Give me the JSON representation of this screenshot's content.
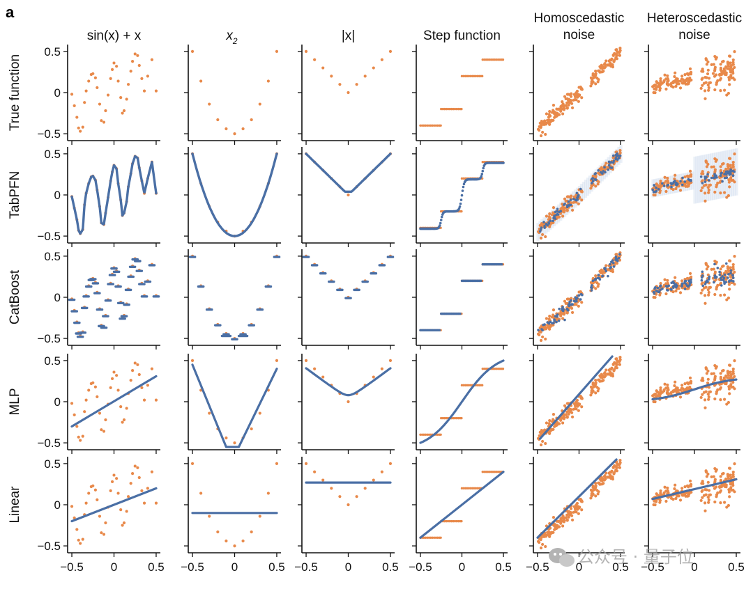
{
  "panel_letter": "a",
  "watermark": {
    "text": "公众号 · 量子位",
    "icon": "wechat-icon"
  },
  "colors": {
    "data_points": "#e8894a",
    "model": "#4a6fa5",
    "axis": "#111111"
  },
  "columns": [
    "sin(x) + x",
    "x2",
    "|x|",
    "Step function",
    "Homoscedastic noise",
    "Heteroscedastic noise"
  ],
  "column_titles": [
    {
      "lines": [
        "sin(x) + x"
      ]
    },
    {
      "lines": [
        "x",
        "2"
      ]
    },
    {
      "lines": [
        "|x|"
      ]
    },
    {
      "lines": [
        "Step function"
      ]
    },
    {
      "lines": [
        "Homoscedastic",
        "noise"
      ]
    },
    {
      "lines": [
        "Heteroscedastic",
        "noise"
      ]
    }
  ],
  "rows": [
    "True function",
    "TabPFN",
    "CatBoost",
    "MLP",
    "Linear"
  ],
  "y_ticks": [
    "0.5",
    "0",
    "−0.5"
  ],
  "x_ticks": [
    "−0.5",
    "0",
    "0.5"
  ],
  "chart_data": {
    "type": "scatter",
    "title": "",
    "xlabel": "",
    "ylabel": "",
    "xlim": [
      -0.55,
      0.55
    ],
    "ylim": [
      -0.55,
      0.55
    ],
    "grid": false,
    "series": [
      {
        "name": "True function",
        "kind": "points",
        "panels": {
          "sin(x) + x": [
            [
              -0.5,
              -0.02
            ],
            [
              -0.47,
              -0.16
            ],
            [
              -0.44,
              -0.3
            ],
            [
              -0.42,
              -0.43
            ],
            [
              -0.4,
              -0.47
            ],
            [
              -0.37,
              -0.42
            ],
            [
              -0.35,
              -0.12
            ],
            [
              -0.33,
              0.02
            ],
            [
              -0.3,
              0.14
            ],
            [
              -0.27,
              0.22
            ],
            [
              -0.25,
              0.23
            ],
            [
              -0.22,
              0.18
            ],
            [
              -0.2,
              0.06
            ],
            [
              -0.17,
              -0.14
            ],
            [
              -0.15,
              -0.34
            ],
            [
              -0.12,
              -0.36
            ],
            [
              -0.1,
              -0.22
            ],
            [
              -0.07,
              -0.03
            ],
            [
              -0.04,
              0.17
            ],
            [
              -0.02,
              0.28
            ],
            [
              0.0,
              0.36
            ],
            [
              0.03,
              0.32
            ],
            [
              0.05,
              0.14
            ],
            [
              0.08,
              -0.06
            ],
            [
              0.1,
              -0.25
            ],
            [
              0.12,
              -0.22
            ],
            [
              0.15,
              -0.08
            ],
            [
              0.17,
              0.1
            ],
            [
              0.2,
              0.26
            ],
            [
              0.22,
              0.38
            ],
            [
              0.25,
              0.47
            ],
            [
              0.28,
              0.45
            ],
            [
              0.3,
              0.33
            ],
            [
              0.33,
              0.17
            ],
            [
              0.36,
              0.02
            ],
            [
              0.4,
              0.2
            ],
            [
              0.45,
              0.4
            ],
            [
              0.5,
              0.02
            ]
          ],
          "x2": [
            [
              -0.5,
              0.5
            ],
            [
              -0.4,
              0.14
            ],
            [
              -0.3,
              -0.14
            ],
            [
              -0.2,
              -0.33
            ],
            [
              -0.1,
              -0.44
            ],
            [
              0.0,
              -0.5
            ],
            [
              0.1,
              -0.44
            ],
            [
              0.2,
              -0.33
            ],
            [
              0.3,
              -0.14
            ],
            [
              0.4,
              0.14
            ],
            [
              0.5,
              0.5
            ]
          ],
          "|x|": [
            [
              -0.5,
              0.5
            ],
            [
              -0.4,
              0.4
            ],
            [
              -0.3,
              0.3
            ],
            [
              -0.2,
              0.2
            ],
            [
              -0.1,
              0.1
            ],
            [
              0.0,
              0.0
            ],
            [
              0.1,
              0.1
            ],
            [
              0.2,
              0.2
            ],
            [
              0.3,
              0.3
            ],
            [
              0.4,
              0.4
            ],
            [
              0.5,
              0.5
            ]
          ],
          "Step function": {
            "steps": [
              [
                -0.5,
                -0.25,
                -0.4
              ],
              [
                -0.25,
                0.0,
                -0.2
              ],
              [
                0.0,
                0.25,
                0.2
              ],
              [
                0.25,
                0.5,
                0.4
              ]
            ]
          },
          "Homoscedastic noise": {
            "trend": [
              [
                -0.5,
                -0.45
              ],
              [
                0.0,
                0.0
              ],
              [
                0.5,
                0.5
              ]
            ],
            "noise_sd": 0.045,
            "gap": [
              0.04,
              0.14
            ],
            "n": 210
          },
          "Heteroscedastic noise": {
            "trend": [
              [
                -0.5,
                0.08
              ],
              [
                0.0,
                0.18
              ],
              [
                0.5,
                0.28
              ]
            ],
            "noise_sd_left": 0.04,
            "noise_sd_right": 0.11,
            "gap": [
              -0.02,
              0.08
            ],
            "n": 220
          }
        }
      },
      {
        "name": "TabPFN",
        "kind": "smooth-fit-with-uncertainty"
      },
      {
        "name": "CatBoost",
        "kind": "piecewise-constant-fit"
      },
      {
        "name": "MLP",
        "kind": "smooth-approximate-fit",
        "panels": {
          "sin(x) + x": [
            [
              -0.5,
              -0.3
            ],
            [
              0.5,
              0.31
            ]
          ],
          "x2": "piecewise linear V, min ≈ −0.62 near x = 0",
          "|x|": "V with rounded bottom, min ≈ 0.08",
          "Step function": "S-curve from (−0.5,−0.55) to (0.5,0.55)",
          "Homoscedastic noise": [
            [
              -0.47,
              -0.45
            ],
            [
              0.4,
              0.55
            ]
          ],
          "Heteroscedastic noise": [
            [
              -0.5,
              0.0
            ],
            [
              0.5,
              0.3
            ]
          ]
        }
      },
      {
        "name": "Linear",
        "kind": "linear-fit",
        "panels": {
          "sin(x) + x": [
            [
              -0.5,
              -0.2
            ],
            [
              0.5,
              0.2
            ]
          ],
          "x2": [
            [
              -0.5,
              -0.1
            ],
            [
              0.5,
              -0.1
            ]
          ],
          "|x|": [
            [
              -0.5,
              0.27
            ],
            [
              0.5,
              0.27
            ]
          ],
          "Step function": [
            [
              -0.5,
              -0.4
            ],
            [
              0.5,
              0.4
            ]
          ],
          "Homoscedastic noise": [
            [
              -0.5,
              -0.4
            ],
            [
              0.45,
              0.55
            ]
          ],
          "Heteroscedastic noise": [
            [
              -0.5,
              0.07
            ],
            [
              0.5,
              0.31
            ]
          ]
        }
      }
    ]
  }
}
